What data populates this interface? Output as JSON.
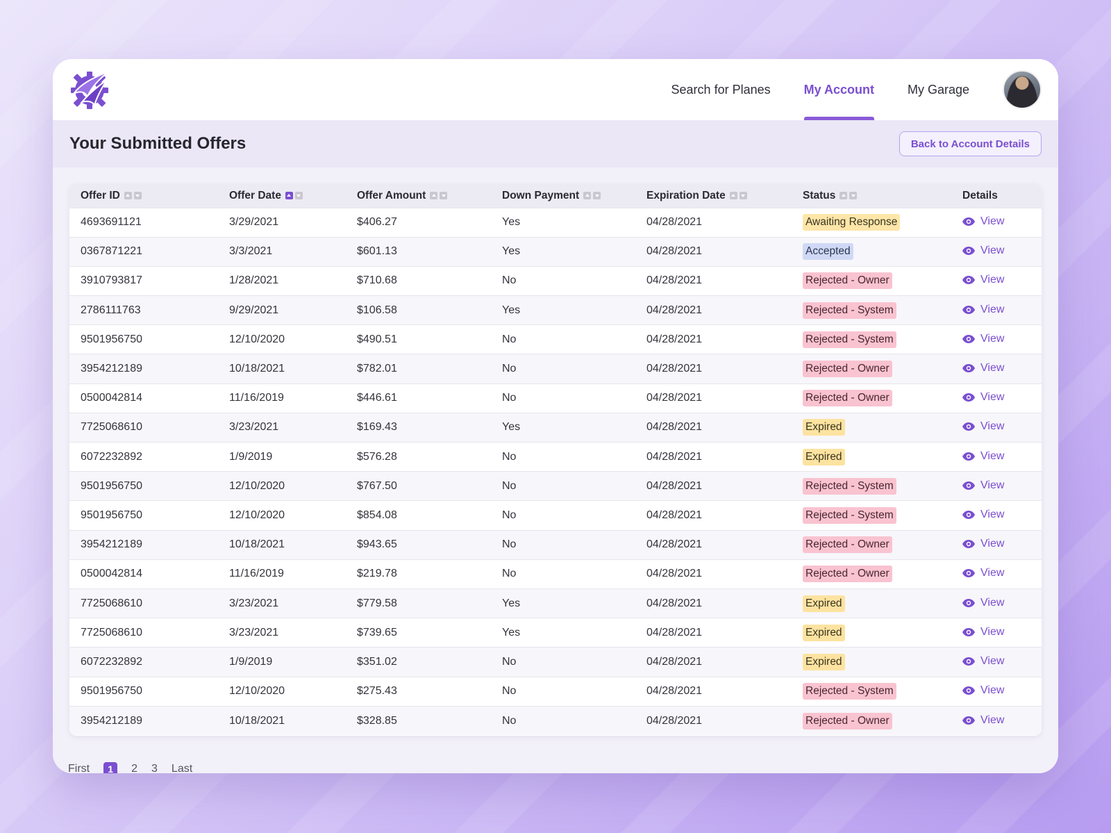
{
  "nav": {
    "items": [
      {
        "label": "Search for Planes",
        "active": false
      },
      {
        "label": "My Account",
        "active": true
      },
      {
        "label": "My Garage",
        "active": false
      }
    ]
  },
  "page": {
    "title": "Your Submitted Offers",
    "back_button": "Back to Account Details"
  },
  "colors": {
    "accent": "#7a4fd0",
    "status_awaiting": "#fde6a8",
    "status_accepted": "#cfd9f5",
    "status_rejected": "#f9c3d0",
    "status_expired": "#fde3a0"
  },
  "table": {
    "columns": [
      "Offer ID",
      "Offer Date",
      "Offer Amount",
      "Down Payment",
      "Expiration Date",
      "Status",
      "Details"
    ],
    "sorted_column": "Offer Date",
    "view_label": "View",
    "rows": [
      {
        "id": "4693691121",
        "date": "3/29/2021",
        "amount": "$406.27",
        "down": "Yes",
        "exp": "04/28/2021",
        "status": "Awaiting Response",
        "kind": "awaiting"
      },
      {
        "id": "0367871221",
        "date": "3/3/2021",
        "amount": "$601.13",
        "down": "Yes",
        "exp": "04/28/2021",
        "status": "Accepted",
        "kind": "accepted"
      },
      {
        "id": "3910793817",
        "date": "1/28/2021",
        "amount": "$710.68",
        "down": "No",
        "exp": "04/28/2021",
        "status": "Rejected - Owner",
        "kind": "rejected"
      },
      {
        "id": "2786111763",
        "date": "9/29/2021",
        "amount": "$106.58",
        "down": "Yes",
        "exp": "04/28/2021",
        "status": "Rejected - System",
        "kind": "rejected"
      },
      {
        "id": "9501956750",
        "date": "12/10/2020",
        "amount": "$490.51",
        "down": "No",
        "exp": "04/28/2021",
        "status": "Rejected - System",
        "kind": "rejected"
      },
      {
        "id": "3954212189",
        "date": "10/18/2021",
        "amount": "$782.01",
        "down": "No",
        "exp": "04/28/2021",
        "status": "Rejected - Owner",
        "kind": "rejected"
      },
      {
        "id": "0500042814",
        "date": "11/16/2019",
        "amount": "$446.61",
        "down": "No",
        "exp": "04/28/2021",
        "status": "Rejected - Owner",
        "kind": "rejected"
      },
      {
        "id": "7725068610",
        "date": "3/23/2021",
        "amount": "$169.43",
        "down": "Yes",
        "exp": "04/28/2021",
        "status": "Expired",
        "kind": "expired"
      },
      {
        "id": "6072232892",
        "date": "1/9/2019",
        "amount": "$576.28",
        "down": "No",
        "exp": "04/28/2021",
        "status": "Expired",
        "kind": "expired"
      },
      {
        "id": "9501956750",
        "date": "12/10/2020",
        "amount": "$767.50",
        "down": "No",
        "exp": "04/28/2021",
        "status": "Rejected - System",
        "kind": "rejected"
      },
      {
        "id": "9501956750",
        "date": "12/10/2020",
        "amount": "$854.08",
        "down": "No",
        "exp": "04/28/2021",
        "status": "Rejected - System",
        "kind": "rejected"
      },
      {
        "id": "3954212189",
        "date": "10/18/2021",
        "amount": "$943.65",
        "down": "No",
        "exp": "04/28/2021",
        "status": "Rejected - Owner",
        "kind": "rejected"
      },
      {
        "id": "0500042814",
        "date": "11/16/2019",
        "amount": "$219.78",
        "down": "No",
        "exp": "04/28/2021",
        "status": "Rejected - Owner",
        "kind": "rejected"
      },
      {
        "id": "7725068610",
        "date": "3/23/2021",
        "amount": "$779.58",
        "down": "Yes",
        "exp": "04/28/2021",
        "status": "Expired",
        "kind": "expired"
      },
      {
        "id": "7725068610",
        "date": "3/23/2021",
        "amount": "$739.65",
        "down": "Yes",
        "exp": "04/28/2021",
        "status": "Expired",
        "kind": "expired"
      },
      {
        "id": "6072232892",
        "date": "1/9/2019",
        "amount": "$351.02",
        "down": "No",
        "exp": "04/28/2021",
        "status": "Expired",
        "kind": "expired"
      },
      {
        "id": "9501956750",
        "date": "12/10/2020",
        "amount": "$275.43",
        "down": "No",
        "exp": "04/28/2021",
        "status": "Rejected - System",
        "kind": "rejected"
      },
      {
        "id": "3954212189",
        "date": "10/18/2021",
        "amount": "$328.85",
        "down": "No",
        "exp": "04/28/2021",
        "status": "Rejected - Owner",
        "kind": "rejected"
      }
    ]
  },
  "pagination": {
    "first": "First",
    "pages": [
      "1",
      "2",
      "3"
    ],
    "current": "1",
    "last": "Last"
  }
}
